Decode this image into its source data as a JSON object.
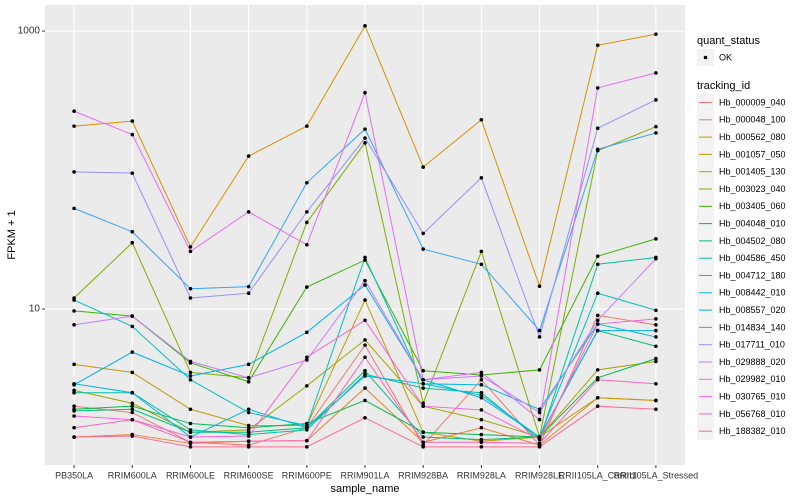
{
  "chart_data": {
    "type": "line",
    "x_label": "sample_name",
    "y_label": "FPKM + 1",
    "log_scale": true,
    "grid": true,
    "ylim": [
      0.755,
      1540
    ],
    "yticks": [
      10,
      1000
    ],
    "point_legend": {
      "title": "quant_status",
      "label": "OK"
    },
    "legend_title": "tracking_id",
    "categories": [
      "PB350LA",
      "RRIM600LA",
      "RRIM600LE",
      "RRIM600SE",
      "RRIM600PE",
      "RRIM901LA",
      "RRIM928BA",
      "RRIM928LA",
      "RRIM928LE",
      "RRII105LA_Control",
      "RRII105LA_Stressed"
    ],
    "series": [
      {
        "name": "Hb_000009_040",
        "color": "#F8766D",
        "values": [
          2.0,
          1.8,
          1.1,
          1.05,
          1.4,
          5.5,
          1.05,
          3.1,
          1.05,
          9.0,
          7.7
        ]
      },
      {
        "name": "Hb_000048_100",
        "color": "#EA8331",
        "values": [
          1.2,
          1.25,
          1.08,
          1.12,
          1.13,
          2.7,
          1.1,
          1.4,
          1.05,
          2.3,
          2.2
        ]
      },
      {
        "name": "Hb_000562_080",
        "color": "#D89000",
        "values": [
          207,
          225,
          28,
          126,
          207,
          1090,
          105,
          230,
          14.6,
          790,
          950
        ]
      },
      {
        "name": "Hb_001057_050",
        "color": "#C09B00",
        "values": [
          4.0,
          3.5,
          1.9,
          1.45,
          1.45,
          11.6,
          1.3,
          1.12,
          1.2,
          2.3,
          2.2
        ]
      },
      {
        "name": "Hb_001405_130",
        "color": "#A3A500",
        "values": [
          2.6,
          2.1,
          1.3,
          1.35,
          2.8,
          6.0,
          2.0,
          1.6,
          1.2,
          3.65,
          4.2
        ]
      },
      {
        "name": "Hb_003023_040",
        "color": "#7CAE00",
        "values": [
          12,
          30,
          3.5,
          3.2,
          42,
          157,
          2.1,
          26,
          1.2,
          138,
          205
        ]
      },
      {
        "name": "Hb_003405_060",
        "color": "#39B600",
        "values": [
          9.7,
          8.9,
          4.1,
          3.0,
          14.4,
          22.5,
          3.6,
          3.35,
          3.65,
          24,
          32
        ]
      },
      {
        "name": "Hb_004048_010",
        "color": "#00BB4E",
        "values": [
          1.9,
          2.0,
          1.5,
          1.4,
          1.5,
          2.2,
          1.3,
          1.25,
          1.2,
          3.2,
          4.4
        ]
      },
      {
        "name": "Hb_004502_080",
        "color": "#00BF7D",
        "values": [
          1.85,
          1.9,
          1.3,
          1.3,
          1.4,
          3.6,
          1.2,
          1.15,
          1.2,
          7.0,
          5.4
        ]
      },
      {
        "name": "Hb_004586_450",
        "color": "#00C1A3",
        "values": [
          2.5,
          2.5,
          1.35,
          1.25,
          1.35,
          3.4,
          2.7,
          2.5,
          1.15,
          21,
          23.5
        ]
      },
      {
        "name": "Hb_004712_180",
        "color": "#00BFC4",
        "values": [
          11.6,
          7.5,
          3.1,
          1.8,
          1.45,
          23.5,
          2.9,
          2.4,
          1.2,
          13,
          9.8
        ]
      },
      {
        "name": "Hb_008442_010",
        "color": "#00BAE0",
        "values": [
          2.9,
          2.5,
          1.2,
          1.9,
          1.4,
          3.3,
          2.9,
          2.85,
          1.9,
          7.8,
          6.3
        ]
      },
      {
        "name": "Hb_008557_020",
        "color": "#00B0F6",
        "values": [
          2.85,
          4.9,
          3.3,
          4.0,
          6.8,
          14.9,
          3.1,
          2.3,
          1.2,
          7.0,
          7.0
        ]
      },
      {
        "name": "Hb_014834_140",
        "color": "#35A2FF",
        "values": [
          53,
          36,
          14,
          14.5,
          81,
          197,
          27,
          21,
          7.0,
          141,
          185
        ]
      },
      {
        "name": "Hb_017711_010",
        "color": "#9590FF",
        "values": [
          97,
          95,
          12,
          13,
          50,
          170,
          35,
          88,
          6.3,
          200,
          320
        ]
      },
      {
        "name": "Hb_029888_020",
        "color": "#C77CFF",
        "values": [
          7.7,
          8.9,
          4.2,
          3.2,
          4.3,
          16,
          3.1,
          3.3,
          1.8,
          8.3,
          23
        ]
      },
      {
        "name": "Hb_029982_010",
        "color": "#E76BF3",
        "values": [
          265,
          180,
          26,
          50,
          29,
          360,
          3.1,
          3.5,
          1.6,
          390,
          500
        ]
      },
      {
        "name": "Hb_030765_010",
        "color": "#FA62DB",
        "values": [
          1.7,
          1.6,
          1.2,
          1.22,
          4.5,
          8.3,
          2.0,
          1.88,
          1.15,
          7.8,
          8.5
        ]
      },
      {
        "name": "Hb_056768_010",
        "color": "#FF62BC",
        "values": [
          1.4,
          1.6,
          1.1,
          1.12,
          1.13,
          4.5,
          1.1,
          1.1,
          1.08,
          3.1,
          2.9
        ]
      },
      {
        "name": "Hb_188382_010",
        "color": "#FF6C91",
        "values": [
          1.2,
          1.22,
          1.02,
          1.02,
          1.02,
          1.65,
          1.02,
          1.02,
          1.02,
          2.0,
          1.9
        ]
      }
    ]
  }
}
